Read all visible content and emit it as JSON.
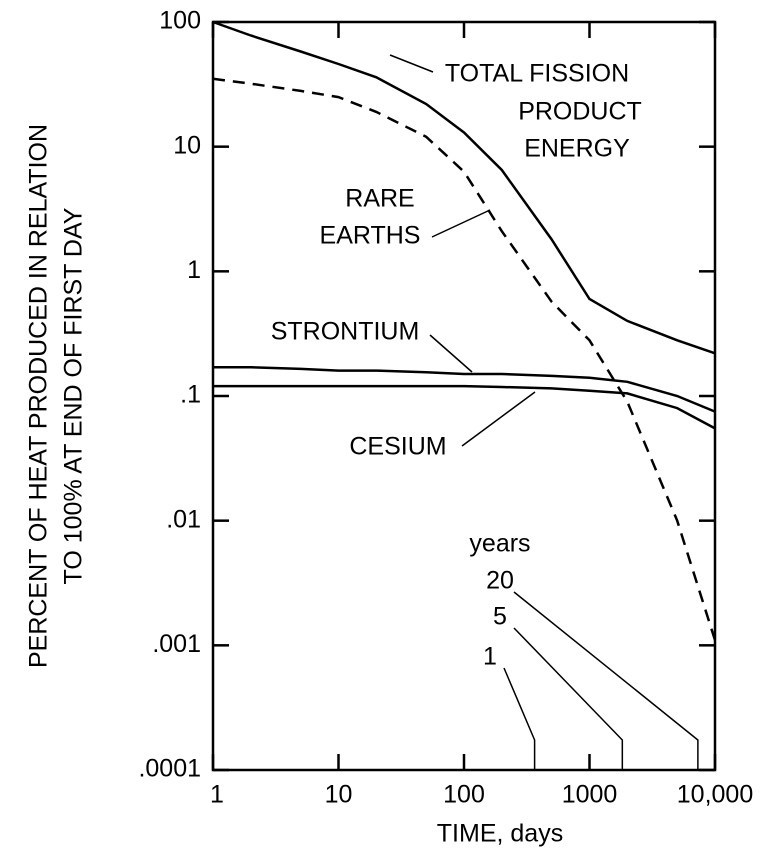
{
  "chart_data": {
    "type": "line",
    "xlabel": "TIME, days",
    "ylabel": [
      "PERCENT OF HEAT PRODUCED IN RELATION",
      "TO 100% AT END OF FIRST DAY"
    ],
    "xscale": "log",
    "yscale": "log",
    "xlim": [
      1,
      10000
    ],
    "ylim": [
      0.0001,
      100
    ],
    "xticks": [
      1,
      10,
      100,
      1000,
      {
        "value": 10000,
        "label": "10,000"
      }
    ],
    "yticks": [
      {
        "value": 0.0001,
        "label": ".0001"
      },
      {
        "value": 0.001,
        "label": ".001"
      },
      {
        "value": 0.01,
        "label": ".01"
      },
      {
        "value": 0.1,
        "label": ".1"
      },
      1,
      10,
      100
    ],
    "x": [
      1,
      2,
      5,
      10,
      20,
      50,
      100,
      200,
      500,
      1000,
      2000,
      5000,
      10000
    ],
    "series": [
      {
        "label": [
          "TOTAL FISSION",
          "PRODUCT",
          "ENERGY"
        ],
        "color": "#000000",
        "line_style": "solid",
        "values": [
          100,
          78,
          58,
          46,
          36,
          22,
          13,
          6.5,
          1.8,
          0.6,
          0.4,
          0.28,
          0.22
        ]
      },
      {
        "label": [
          "RARE",
          "EARTHS"
        ],
        "color": "#000000",
        "line_style": "dashed",
        "values": [
          35,
          32,
          28,
          25,
          19,
          12,
          6.3,
          2.1,
          0.57,
          0.28,
          0.09,
          0.01,
          0.0011
        ]
      },
      {
        "label": [
          "STRONTIUM"
        ],
        "color": "#000000",
        "line_style": "solid",
        "values": [
          0.17,
          0.17,
          0.165,
          0.16,
          0.16,
          0.155,
          0.15,
          0.15,
          0.145,
          0.14,
          0.13,
          0.1,
          0.075
        ]
      },
      {
        "label": [
          "CESIUM"
        ],
        "color": "#000000",
        "line_style": "solid",
        "values": [
          0.12,
          0.12,
          0.12,
          0.12,
          0.12,
          0.12,
          0.12,
          0.118,
          0.115,
          0.11,
          0.105,
          0.08,
          0.055
        ]
      }
    ],
    "year_markers": {
      "title": "years",
      "values": [
        20,
        5,
        1
      ]
    }
  }
}
